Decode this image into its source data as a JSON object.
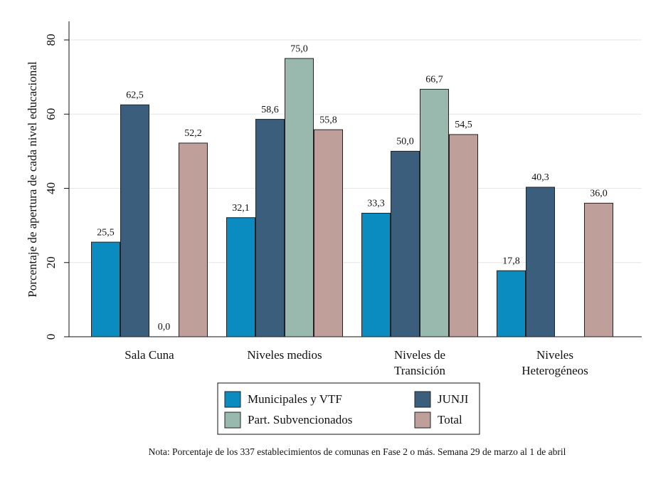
{
  "chart_data": {
    "type": "bar",
    "ylabel": "Porcentaje de apertura de cada nivel educacional",
    "categories": [
      "Sala Cuna",
      "Niveles medios",
      "Niveles de Transición",
      "Niveles Heterogéneos"
    ],
    "series": [
      {
        "name": "Municipales y VTF",
        "color": "#0a8cc0",
        "values": [
          25.5,
          32.1,
          33.3,
          17.8
        ],
        "value_labels": [
          "25,5",
          "32,1",
          "33,3",
          "17,8"
        ]
      },
      {
        "name": "JUNJI",
        "color": "#3c5e7d",
        "values": [
          62.5,
          58.6,
          50.0,
          40.3
        ],
        "value_labels": [
          "62,5",
          "58,6",
          "50,0",
          "40,3"
        ]
      },
      {
        "name": "Part. Subvencionados",
        "color": "#99b9ae",
        "values": [
          0.0,
          75.0,
          66.7,
          null
        ],
        "value_labels": [
          "0,0",
          "75,0",
          "66,7",
          null
        ]
      },
      {
        "name": "Total",
        "color": "#bf9f99",
        "values": [
          52.2,
          55.8,
          54.5,
          36.0
        ],
        "value_labels": [
          "52,2",
          "55,8",
          "54,5",
          "36,0"
        ]
      }
    ],
    "ylim": [
      0,
      85
    ],
    "yticks": [
      0,
      20,
      40,
      60,
      80
    ],
    "grid": true,
    "legend": "bottom",
    "note": "Nota: Porcentaje de los 337 establecimientos de comunas en Fase 2 o más. Semana 29 de marzo al 1 de abril"
  }
}
